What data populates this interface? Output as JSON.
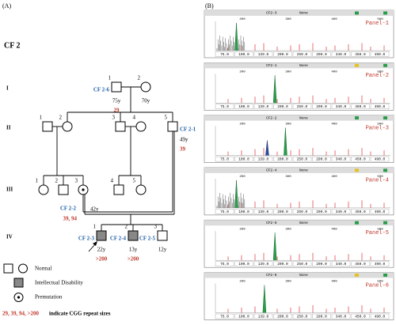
{
  "labels": {
    "a": "(A)",
    "b": "(B)"
  },
  "pedigree": {
    "title": "CF 2",
    "generations": [
      "I",
      "II",
      "III",
      "IV"
    ],
    "individuals": [
      {
        "number": "1",
        "id": "CF 2-6",
        "age": "75y",
        "repeat": "29"
      },
      {
        "number": "2",
        "age": "70y"
      },
      {
        "number": "1"
      },
      {
        "number": "2"
      },
      {
        "number": "3"
      },
      {
        "number": "4"
      },
      {
        "number": "5",
        "id": "CF 2-1",
        "age": "49y",
        "repeat": "39"
      },
      {
        "number": "1"
      },
      {
        "number": "2"
      },
      {
        "number": "3",
        "id": "CF 2-2",
        "age": "42y",
        "repeat": "39, 94"
      },
      {
        "number": "4"
      },
      {
        "number": "5"
      },
      {
        "number": "1",
        "id": "CF 2-3",
        "age": "22y",
        "repeat": ">200"
      },
      {
        "number": "2",
        "id": "CF 2-4",
        "age": "13y",
        "repeat": ">200"
      },
      {
        "number": "3",
        "id": "CF 2-5",
        "age": "12y"
      }
    ],
    "legend": {
      "normal": "Normal",
      "affected": "Intellectual Disability",
      "premutation": "Premutation"
    },
    "note": {
      "values": "29, 39, 94, >200",
      "text": "indicate CGG repeat sizes"
    }
  },
  "electropherograms": {
    "filter": "None",
    "top_scale": [
      "200",
      "300",
      "400",
      "500"
    ],
    "xticks": [
      "75.0",
      "100.0",
      "139.0",
      "200.0",
      "250.0",
      "290.0",
      "340.0",
      "450.0",
      "490.0"
    ],
    "panels": [
      {
        "label": "Panel-1",
        "sample": "CF2-3"
      },
      {
        "label": "Panel-2",
        "sample": "CF2-1"
      },
      {
        "label": "Panel-3",
        "sample": "CF2-2"
      },
      {
        "label": "Panel-4",
        "sample": "CF2-4"
      },
      {
        "label": "Panel-5",
        "sample": "CF2-5"
      },
      {
        "label": "Panel-6",
        "sample": "CF2-6"
      }
    ]
  }
}
